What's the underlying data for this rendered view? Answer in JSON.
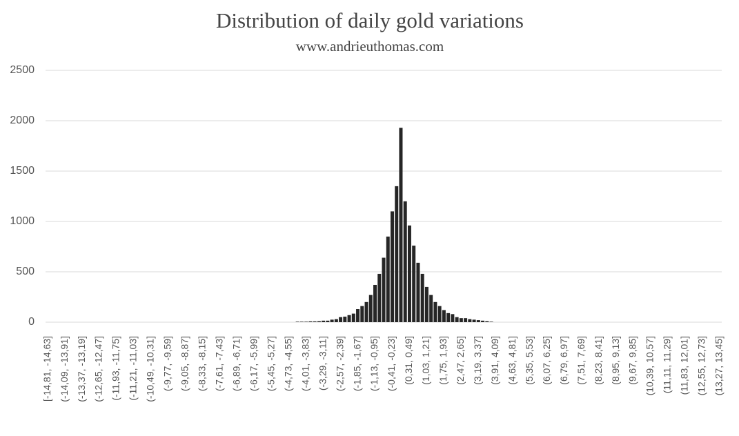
{
  "chart_data": {
    "type": "bar",
    "title": "Distribution of daily gold variations",
    "subtitle": "www.andrieuthomas.com",
    "categories": [
      "[-14,81, -14,63]",
      null,
      null,
      null,
      "(-14,09, -13,91]",
      null,
      null,
      null,
      "(-13,37, -13,19]",
      null,
      null,
      null,
      "(-12,65, -12,47]",
      null,
      null,
      null,
      "(-11,93, -11,75]",
      null,
      null,
      null,
      "(-11,21, -11,03]",
      null,
      null,
      null,
      "(-10,49, -10,31]",
      null,
      null,
      null,
      "(-9,77, -9,59]",
      null,
      null,
      null,
      "(-9,05, -8,87]",
      null,
      null,
      null,
      "(-8,33, -8,15]",
      null,
      null,
      null,
      "(-7,61, -7,43]",
      null,
      null,
      null,
      "(-6,89, -6,71]",
      null,
      null,
      null,
      "(-6,17, -5,99]",
      null,
      null,
      null,
      "(-5,45, -5,27]",
      null,
      null,
      null,
      "(-4,73, -4,55]",
      null,
      null,
      null,
      "(-4,01, -3,83]",
      null,
      null,
      null,
      "(-3,29, -3,11]",
      null,
      null,
      null,
      "(-2,57, -2,39]",
      null,
      null,
      null,
      "(-1,85, -1,67]",
      null,
      null,
      null,
      "(-1,13, -0,95]",
      null,
      null,
      null,
      "(-0,41, -0,23]",
      null,
      null,
      null,
      "(0,31, 0,49]",
      null,
      null,
      null,
      "(1,03, 1,21]",
      null,
      null,
      null,
      "(1,75, 1,93]",
      null,
      null,
      null,
      "(2,47, 2,65]",
      null,
      null,
      null,
      "(3,19, 3,37]",
      null,
      null,
      null,
      "(3,91, 4,09]",
      null,
      null,
      null,
      "(4,63, 4,81]",
      null,
      null,
      null,
      "(5,35, 5,53]",
      null,
      null,
      null,
      "(6,07, 6,25]",
      null,
      null,
      null,
      "(6,79, 6,97]",
      null,
      null,
      null,
      "(7,51, 7,69]",
      null,
      null,
      null,
      "(8,23, 8,41]",
      null,
      null,
      null,
      "(8,95, 9,13]",
      null,
      null,
      null,
      "(9,67, 9,85]",
      null,
      null,
      null,
      "(10,39, 10,57]",
      null,
      null,
      null,
      "(11,11, 11,29]",
      null,
      null,
      null,
      "(11,83, 12,01]",
      null,
      null,
      null,
      "(12,55, 12,73]",
      null,
      null,
      null,
      "(13,27, 13,45]"
    ],
    "values": [
      0,
      0,
      0,
      0,
      0,
      0,
      0,
      0,
      0,
      0,
      0,
      0,
      0,
      0,
      0,
      0,
      0,
      0,
      0,
      0,
      0,
      0,
      0,
      0,
      0,
      0,
      0,
      0,
      0,
      0,
      0,
      0,
      0,
      0,
      0,
      0,
      0,
      0,
      0,
      0,
      0,
      0,
      0,
      0,
      0,
      0,
      0,
      0,
      0,
      0,
      0,
      0,
      0,
      0,
      0,
      0,
      0,
      0,
      5,
      5,
      5,
      8,
      8,
      10,
      15,
      15,
      25,
      30,
      50,
      55,
      70,
      85,
      130,
      160,
      200,
      270,
      370,
      480,
      640,
      850,
      1100,
      1350,
      1930,
      1200,
      960,
      760,
      590,
      480,
      350,
      270,
      200,
      160,
      120,
      90,
      80,
      50,
      40,
      40,
      30,
      25,
      20,
      15,
      10,
      5,
      0,
      0,
      0,
      0,
      0,
      0,
      0,
      0,
      0,
      0,
      0,
      0,
      0,
      0,
      0,
      0,
      0,
      0,
      0,
      0,
      0,
      0,
      0,
      0,
      0,
      0,
      0,
      0,
      0,
      0,
      0,
      0,
      0,
      0,
      0,
      0,
      0,
      0,
      0,
      0,
      0,
      0,
      0,
      0,
      0,
      0,
      0,
      0,
      0,
      0,
      0,
      0,
      0
    ],
    "color": "#262626",
    "ylim": [
      0,
      2500
    ],
    "yticks": [
      0,
      500,
      1000,
      1500,
      2000,
      2500
    ],
    "grid": true
  }
}
